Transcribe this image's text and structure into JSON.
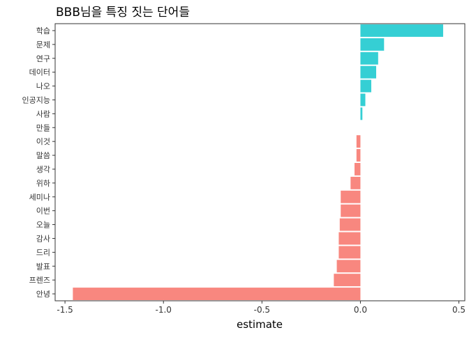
{
  "chart_data": {
    "type": "bar",
    "orientation": "horizontal",
    "title": "BBB님을 특징 짓는 단어들",
    "xlabel": "estimate",
    "ylabel": "",
    "xlim": [
      -1.55,
      0.53
    ],
    "x_ticks": [
      -1.5,
      -1.0,
      -0.5,
      0.0,
      0.5
    ],
    "x_tick_labels": [
      "-1.5",
      "-1.0",
      "-0.5",
      "0.0",
      "0.5"
    ],
    "grid": false,
    "legend": "none",
    "categories": [
      "학습",
      "문제",
      "연구",
      "데이터",
      "나오",
      "인공지능",
      "사람",
      "만들",
      "이것",
      "말씀",
      "생각",
      "위하",
      "세미나",
      "이번",
      "오늘",
      "감사",
      "드리",
      "발표",
      "프렌즈",
      "안녕"
    ],
    "values": [
      0.42,
      0.12,
      0.09,
      0.08,
      0.055,
      0.025,
      0.01,
      0.0,
      -0.02,
      -0.02,
      -0.03,
      -0.05,
      -0.1,
      -0.1,
      -0.105,
      -0.11,
      -0.11,
      -0.12,
      -0.135,
      -1.46
    ],
    "colors": {
      "positive": "#35CFD4",
      "negative": "#F8877F",
      "axis": "#333333",
      "text": "#333333"
    }
  }
}
